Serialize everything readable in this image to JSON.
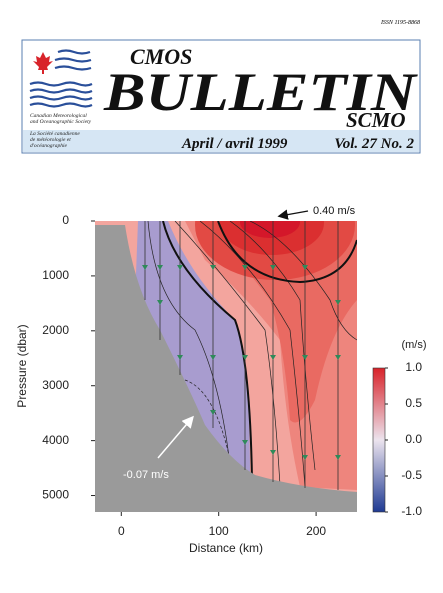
{
  "header": {
    "issn": "ISSN 1195-8868",
    "cmos": "CMOS",
    "bulletin": "BULLETIN",
    "scmo": "SCMO",
    "society_en": [
      "Canadian Meteorological",
      "and Oceanographic Society"
    ],
    "society_fr": [
      "La Société canadienne",
      "de météorologie et",
      "d'océanographie"
    ],
    "date": "April / avril 1999",
    "volume": "Vol. 27 No. 2"
  },
  "figure": {
    "type": "contour",
    "xlabel": "Distance (km)",
    "ylabel": "Pressure (dbar)",
    "xlim": [
      -27,
      242
    ],
    "xticks": [
      0,
      100,
      200
    ],
    "ylim": [
      0,
      5300
    ],
    "yticks": [
      0,
      1000,
      2000,
      3000,
      4000,
      5000
    ],
    "y_inverted": true,
    "colorbar": {
      "label": "(m/s)",
      "lim": [
        -1,
        1
      ],
      "ticks": [
        {
          "value": 1,
          "label": "1.0"
        },
        0.5,
        {
          "value": 0,
          "label": "0.0"
        },
        -0.5,
        {
          "value": -1,
          "label": "-1.0"
        }
      ],
      "colors": [
        "#1f3a93",
        "#ece4ee",
        "#d8232a"
      ]
    },
    "annotations": [
      "0.40 m/s",
      "-0.07 m/s"
    ]
  }
}
